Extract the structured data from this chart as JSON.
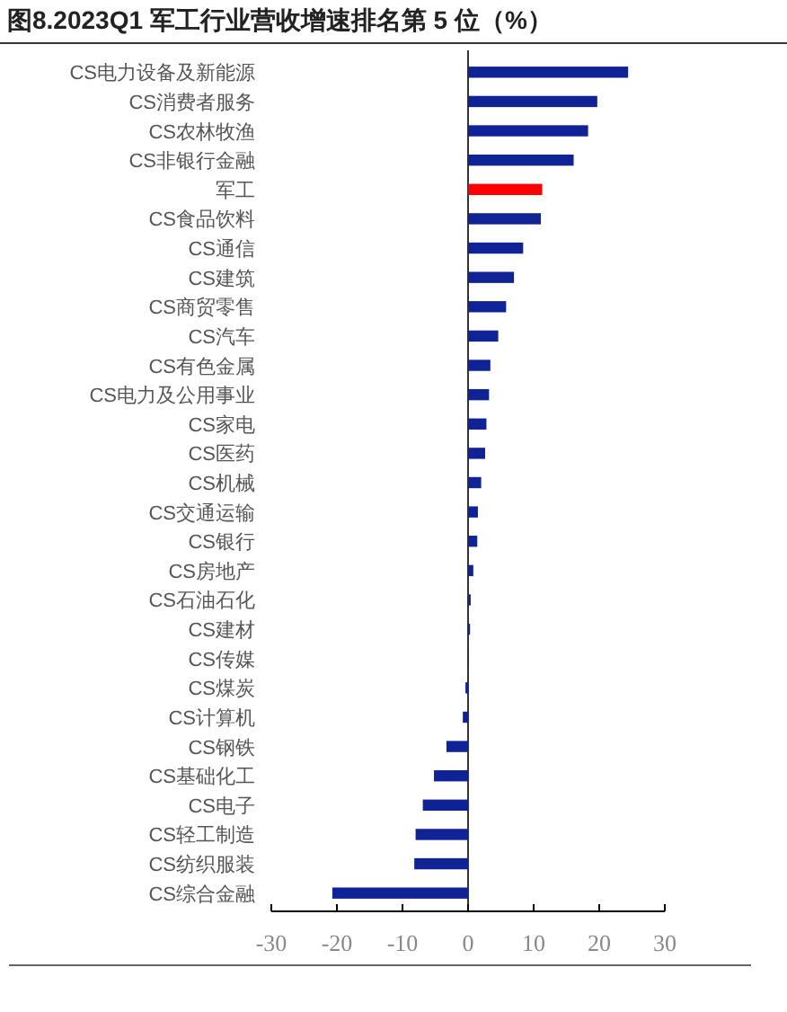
{
  "chart_data": {
    "type": "bar",
    "orientation": "horizontal",
    "title": "图8.2023Q1 军工行业营收增速排名第 5 位（%）",
    "categories": [
      "CS电力设备及新能源",
      "CS消费者服务",
      "CS农林牧渔",
      "CS非银行金融",
      "军工",
      "CS食品饮料",
      "CS通信",
      "CS建筑",
      "CS商贸零售",
      "CS汽车",
      "CS有色金属",
      "CS电力及公用事业",
      "CS家电",
      "CS医药",
      "CS机械",
      "CS交通运输",
      "CS银行",
      "CS房地产",
      "CS石油石化",
      "CS建材",
      "CS传媒",
      "CS煤炭",
      "CS计算机",
      "CS钢铁",
      "CS基础化工",
      "CS电子",
      "CS轻工制造",
      "CS纺织服装",
      "CS综合金融"
    ],
    "values": [
      24.4,
      19.7,
      18.3,
      16.1,
      11.3,
      11.1,
      8.4,
      7.0,
      5.8,
      4.6,
      3.4,
      3.2,
      2.8,
      2.6,
      2.0,
      1.5,
      1.4,
      0.8,
      0.4,
      0.3,
      0.1,
      -0.4,
      -0.8,
      -3.3,
      -5.2,
      -6.9,
      -8.0,
      -8.2,
      -20.7
    ],
    "colors": [
      "#0f2396",
      "#0f2396",
      "#0f2396",
      "#0f2396",
      "#ff0000",
      "#0f2396",
      "#0f2396",
      "#0f2396",
      "#0f2396",
      "#0f2396",
      "#0f2396",
      "#0f2396",
      "#0f2396",
      "#0f2396",
      "#0f2396",
      "#0f2396",
      "#0f2396",
      "#0f2396",
      "#0f2396",
      "#0f2396",
      "#0f2396",
      "#0f2396",
      "#0f2396",
      "#0f2396",
      "#0f2396",
      "#0f2396",
      "#0f2396",
      "#0f2396",
      "#0f2396"
    ],
    "xlim": [
      -30,
      30
    ],
    "xticks": [
      -30,
      -20,
      -10,
      0,
      10,
      20,
      30
    ]
  }
}
